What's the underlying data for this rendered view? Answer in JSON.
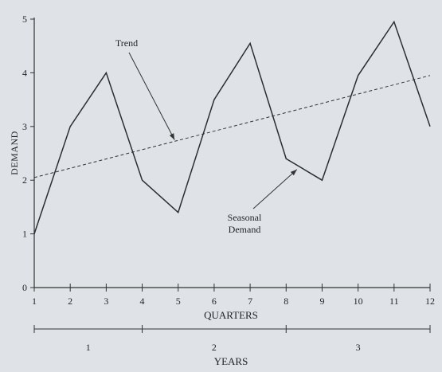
{
  "chart_data": {
    "type": "line",
    "ylabel": "DEMAND",
    "xlabel": "QUARTERS",
    "x": [
      1,
      2,
      3,
      4,
      5,
      6,
      7,
      8,
      9,
      10,
      11,
      12
    ],
    "y_ticks": [
      0,
      1,
      2,
      3,
      4,
      5
    ],
    "ylim": [
      0,
      5
    ],
    "xlim": [
      1,
      12
    ],
    "grid": false,
    "series": [
      {
        "name": "Seasonal Demand",
        "style": "solid",
        "values": [
          1.0,
          3.0,
          4.0,
          2.0,
          1.4,
          3.5,
          4.55,
          2.4,
          2.0,
          3.95,
          4.95,
          3.0
        ]
      },
      {
        "name": "Trend",
        "style": "dashed",
        "line": {
          "x": [
            1,
            12
          ],
          "y": [
            2.05,
            3.95
          ]
        }
      }
    ],
    "annotations": [
      {
        "text": "Trend",
        "points_to": {
          "x": 4.9,
          "y": 2.75
        }
      },
      {
        "text_lines": [
          "Seasonal",
          "Demand"
        ],
        "points_to": {
          "x": 8.3,
          "y": 2.2
        }
      }
    ],
    "years_axis": {
      "label": "YEARS",
      "divisions": [
        1,
        4,
        8,
        12
      ],
      "labels": [
        "1",
        "2",
        "3"
      ]
    }
  }
}
